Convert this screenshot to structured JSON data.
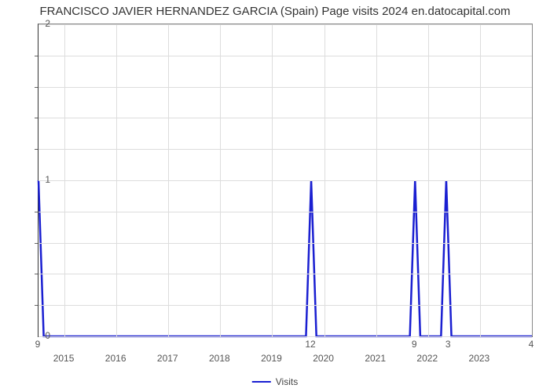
{
  "chart": {
    "type": "line",
    "title": "FRANCISCO JAVIER HERNANDEZ GARCIA (Spain) Page visits 2024 en.datocapital.com",
    "title_fontsize": 15,
    "title_color": "#333333",
    "background_color": "#ffffff",
    "plot_border_color_main": "#333333",
    "plot_border_color_light": "#888888",
    "grid_color": "#dddddd",
    "line_color": "#1a1fd1",
    "line_width": 2.5,
    "xlim": [
      2014.5,
      2024.0
    ],
    "ylim": [
      0,
      2
    ],
    "y_ticks": [
      0,
      1,
      2
    ],
    "y_minor_ticks": 5,
    "x_years": [
      2015,
      2016,
      2017,
      2018,
      2019,
      2020,
      2021,
      2022,
      2023
    ],
    "x_top_labels": {
      "2014.5": "9",
      "2019.75": "12",
      "2021.75": "9",
      "2022.4": "3",
      "2024.0": "4"
    },
    "axis_label_fontsize": 12,
    "axis_label_color": "#555555",
    "legend_label": "Visits",
    "series": [
      {
        "x": 2014.5,
        "y": 1
      },
      {
        "x": 2014.6,
        "y": 0
      },
      {
        "x": 2019.65,
        "y": 0
      },
      {
        "x": 2019.75,
        "y": 1
      },
      {
        "x": 2019.85,
        "y": 0
      },
      {
        "x": 2021.65,
        "y": 0
      },
      {
        "x": 2021.75,
        "y": 1
      },
      {
        "x": 2021.85,
        "y": 0
      },
      {
        "x": 2022.25,
        "y": 0
      },
      {
        "x": 2022.35,
        "y": 1
      },
      {
        "x": 2022.45,
        "y": 0
      },
      {
        "x": 2024.0,
        "y": 0
      }
    ],
    "grid_v_positions": [
      2015,
      2016,
      2017,
      2018,
      2019,
      2020,
      2021,
      2022,
      2023
    ]
  }
}
